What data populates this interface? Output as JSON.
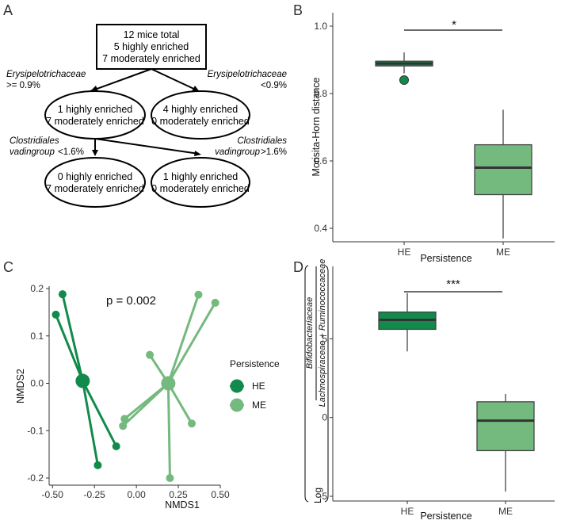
{
  "panels": {
    "a": "A",
    "b": "B",
    "c": "C",
    "d": "D"
  },
  "tree": {
    "root": [
      "12 mice total",
      "5 highly enriched",
      "7 moderately enriched"
    ],
    "left_split": {
      "taxon": "Erysipelotrichaceae",
      "cond": ">= 0.9%"
    },
    "right_split": {
      "taxon": "Erysipelotrichaceae",
      "cond": "<0.9%"
    },
    "node_l": [
      "1 highly enriched",
      "7 moderately enriched"
    ],
    "node_r": [
      "4 highly enriched",
      "0 moderately enriched"
    ],
    "left_split2": {
      "taxon1": "Clostridiales",
      "taxon2": "vadingroup",
      "cond": "<1.6%"
    },
    "right_split2": {
      "taxon1": "Clostridiales",
      "taxon2": "vadingroup",
      "cond": ">1.6%"
    },
    "node_ll": [
      "0 highly enriched",
      "7 moderately enriched"
    ],
    "node_lr": [
      "1 highly enriched",
      "0 moderately enriched"
    ]
  },
  "chart_data": [
    {
      "panel": "B",
      "type": "box",
      "xlabel": "Persistence",
      "ylabel": "Morisita-Horn distance",
      "categories": [
        "HE",
        "ME"
      ],
      "ylim": [
        0.36,
        1.04
      ],
      "yticks": [
        "0.4",
        "0.6",
        "0.8",
        "1.0"
      ],
      "boxes": [
        {
          "name": "HE",
          "min": 0.86,
          "q1": 0.882,
          "median": 0.889,
          "q3": 0.896,
          "max": 0.922,
          "outliers": [
            0.84
          ],
          "color": "#128a4c"
        },
        {
          "name": "ME",
          "min": 0.37,
          "q1": 0.5,
          "median": 0.58,
          "q3": 0.648,
          "max": 0.752,
          "outliers": [],
          "color": "#74b97e"
        }
      ],
      "significance": "*"
    },
    {
      "panel": "C",
      "type": "scatter",
      "xlabel": "NMDS1",
      "ylabel": "NMDS2",
      "xlim": [
        -0.52,
        0.5
      ],
      "ylim": [
        -0.215,
        0.205
      ],
      "xticks": [
        "-0.50",
        "-0.25",
        "0.00",
        "0.25",
        "0.50"
      ],
      "yticks": [
        "-0.2",
        "-0.1",
        "0.0",
        "0.1",
        "0.2"
      ],
      "annotation": "p = 0.002",
      "legend": {
        "title": "Persistence",
        "entries": [
          "HE",
          "ME"
        ]
      },
      "series": [
        {
          "name": "HE",
          "color": "#128a4c",
          "centroid": [
            -0.32,
            0.005
          ],
          "points": [
            [
              -0.44,
              0.188
            ],
            [
              -0.48,
              0.145
            ],
            [
              -0.12,
              -0.133
            ],
            [
              -0.23,
              -0.173
            ]
          ]
        },
        {
          "name": "ME",
          "color": "#74b97e",
          "centroid": [
            0.19,
            0.0
          ],
          "points": [
            [
              0.37,
              0.187
            ],
            [
              0.47,
              0.17
            ],
            [
              0.08,
              0.06
            ],
            [
              -0.07,
              -0.075
            ],
            [
              -0.08,
              -0.09
            ],
            [
              0.33,
              -0.085
            ],
            [
              0.2,
              -0.2
            ]
          ]
        }
      ]
    },
    {
      "panel": "D",
      "type": "box",
      "xlabel": "Persistence",
      "ylabel_log": "Log",
      "ylabel_num": "Bifidobacteriaceae",
      "ylabel_den": "Lachnospiraceae + Ruminococcaceae",
      "categories": [
        "HE",
        "ME"
      ],
      "ylim": [
        -5.3,
        9.6
      ],
      "yticks": [
        "-5",
        "0",
        "5"
      ],
      "boxes": [
        {
          "name": "HE",
          "min": 4.2,
          "q1": 5.6,
          "median": 6.2,
          "q3": 6.7,
          "max": 7.9,
          "outliers": [],
          "color": "#128a4c"
        },
        {
          "name": "ME",
          "min": -4.7,
          "q1": -2.1,
          "median": -0.2,
          "q3": 1.0,
          "max": 1.5,
          "outliers": [],
          "color": "#74b97e"
        }
      ],
      "significance": "***"
    }
  ]
}
